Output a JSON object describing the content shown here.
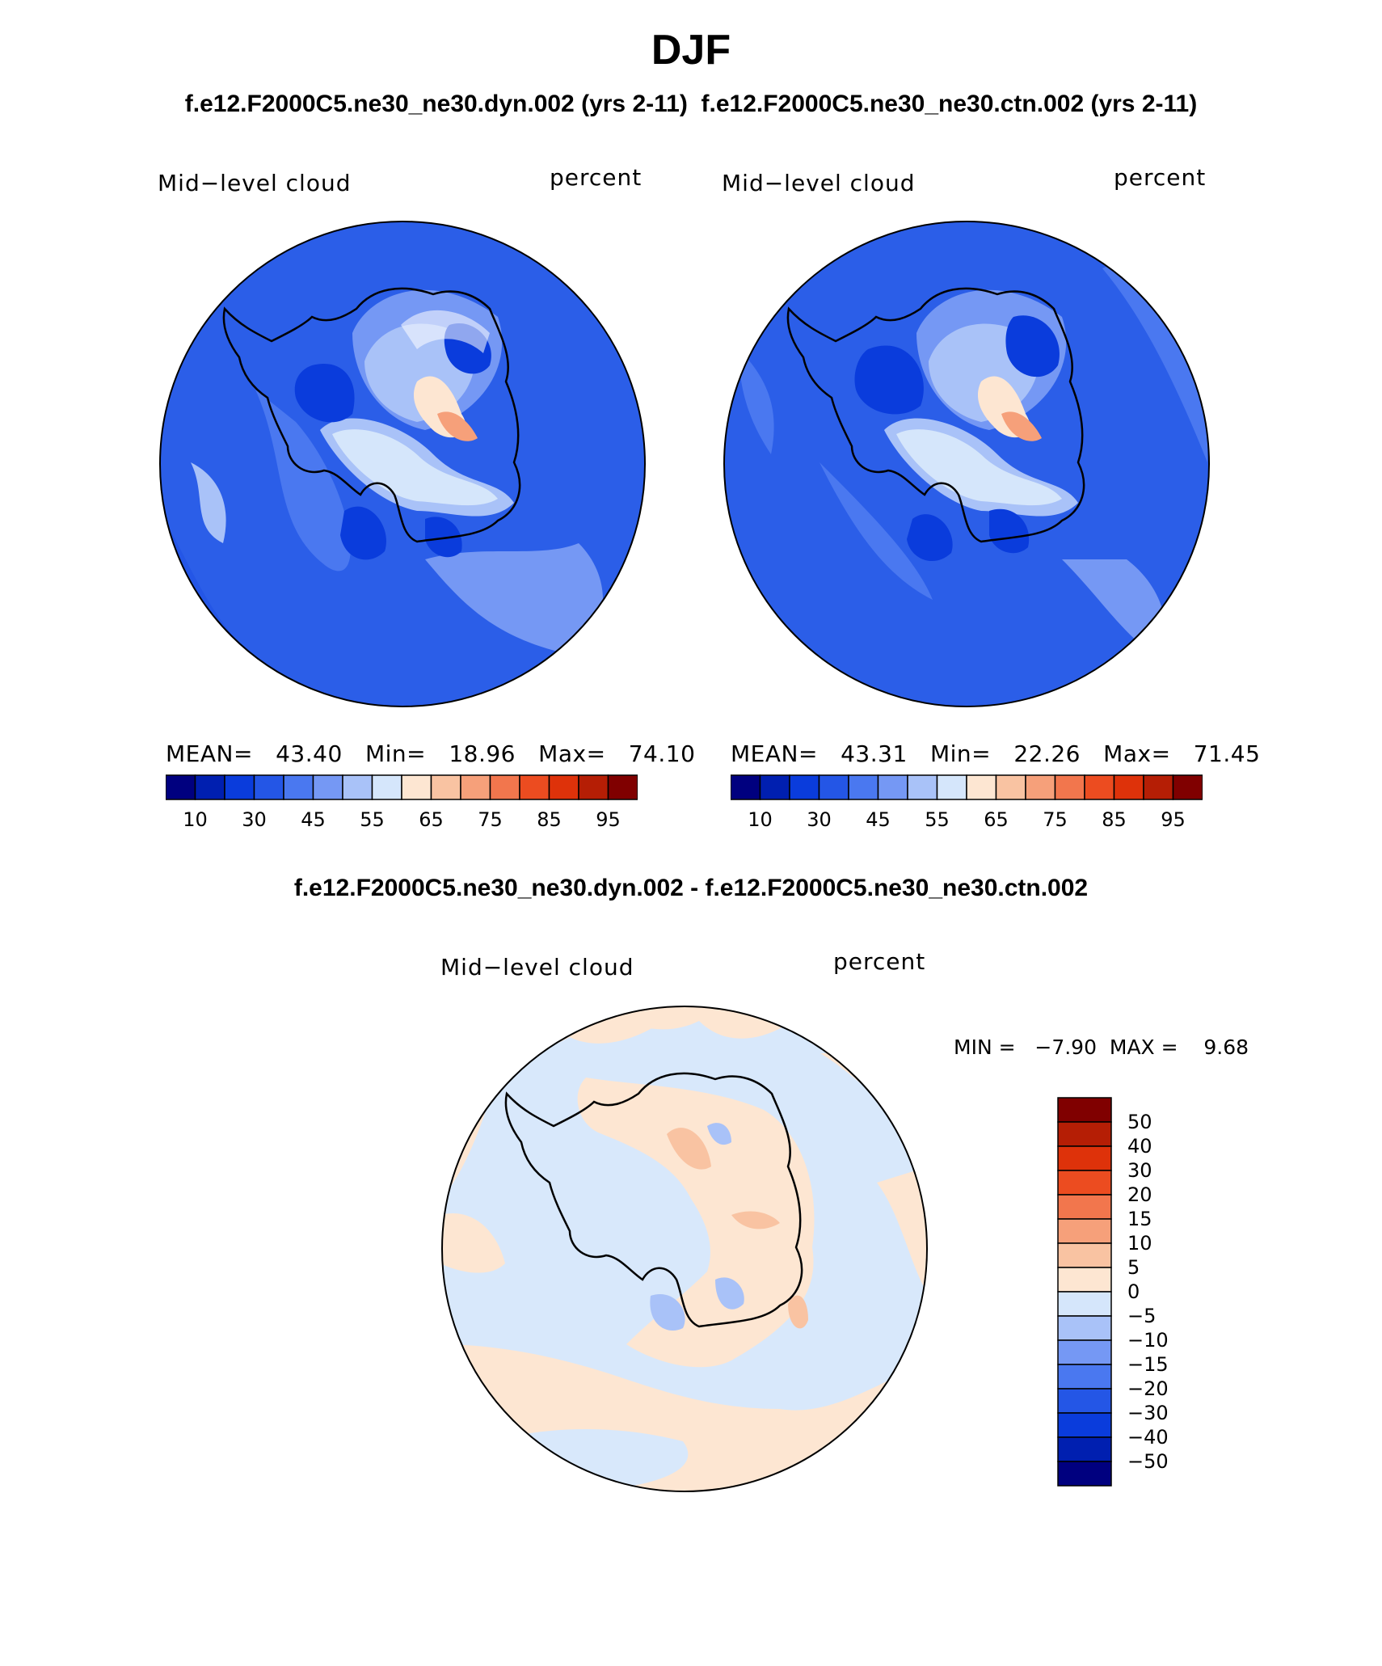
{
  "main_title": "DJF",
  "subtitle_top": "f.e12.F2000C5.ne30_ne30.dyn.002 (yrs 2-11)  f.e12.F2000C5.ne30_ne30.ctn.002 (yrs 2-11)",
  "subtitle_diff": "f.e12.F2000C5.ne30_ne30.dyn.002 - f.e12.F2000C5.ne30_ne30.ctn.002",
  "panel1": {
    "variable": "Mid−level cloud",
    "units": "percent",
    "stats": "MEAN=   43.40   Min=   18.96   Max=   74.10"
  },
  "panel2": {
    "variable": "Mid−level cloud",
    "units": "percent",
    "stats": "MEAN=   43.31   Min=   22.26   Max=   71.45"
  },
  "panel3": {
    "variable": "Mid−level cloud",
    "units": "percent",
    "stats": "MIN =   −7.90  MAX =    9.68"
  },
  "colorbar_abs": {
    "colors": [
      "#00007f",
      "#001fb0",
      "#0a3cdc",
      "#2456e6",
      "#4a78f0",
      "#7598f4",
      "#a9c2f8",
      "#d5e6fb",
      "#fde6d2",
      "#f9c3a2",
      "#f6a07a",
      "#f2764d",
      "#ec4c20",
      "#de320a",
      "#b51e05",
      "#800000"
    ],
    "tick_labels": [
      "10",
      "30",
      "45",
      "55",
      "65",
      "75",
      "85",
      "95"
    ]
  },
  "colorbar_diff": {
    "colors": [
      "#800000",
      "#b51e05",
      "#de320a",
      "#ec4c20",
      "#f2764d",
      "#f6a07a",
      "#f9c3a2",
      "#fde6d2",
      "#d5e6fb",
      "#a9c2f8",
      "#7598f4",
      "#4a78f0",
      "#2456e6",
      "#0a3cdc",
      "#001fb0",
      "#00007f"
    ],
    "tick_labels": [
      "50",
      "40",
      "30",
      "20",
      "15",
      "10",
      "5",
      "0",
      "−5",
      "−10",
      "−15",
      "−20",
      "−30",
      "−40",
      "−50"
    ]
  },
  "map_colors": {
    "base_abs": "#2b5ee8",
    "base_diff": "#d8e8fb",
    "coastline": "#000000"
  }
}
